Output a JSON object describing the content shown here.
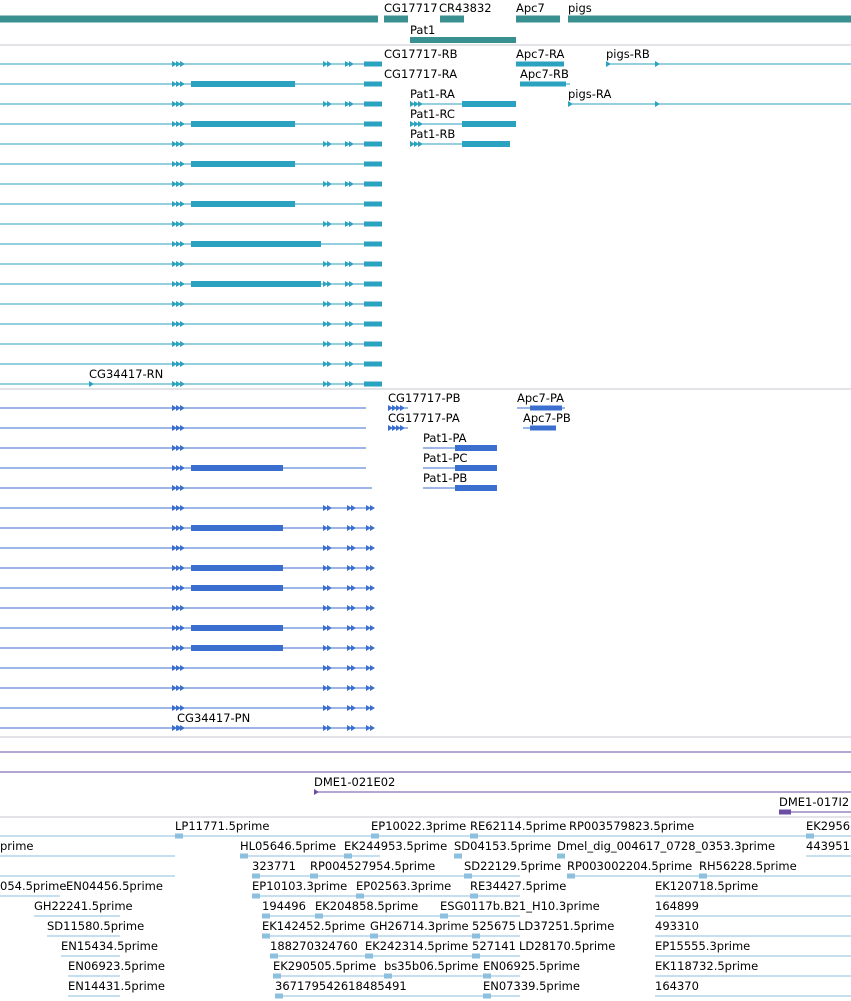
{
  "colors": {
    "gene": "#3a8f91",
    "transcript": "#2ba2c0",
    "protein": "#3a6fcf",
    "clone": "#6a4ea6",
    "est": "#8dbfdf",
    "separator": "#c8c8d0"
  },
  "sections": {
    "genes": [
      {
        "label": "CG17717"
      },
      {
        "label": "CR43832"
      },
      {
        "label": "Apc7"
      },
      {
        "label": "pigs"
      },
      {
        "label": "Pat1"
      }
    ],
    "transcripts": [
      {
        "label": "CG17717-RB"
      },
      {
        "label": "CG17717-RA"
      },
      {
        "label": "Apc7-RA"
      },
      {
        "label": "Apc7-RB"
      },
      {
        "label": "pigs-RB"
      },
      {
        "label": "pigs-RA"
      },
      {
        "label": "Pat1-RA"
      },
      {
        "label": "Pat1-RC"
      },
      {
        "label": "Pat1-RB"
      },
      {
        "label": "CG34417-RN"
      }
    ],
    "proteins": [
      {
        "label": "CG17717-PB"
      },
      {
        "label": "CG17717-PA"
      },
      {
        "label": "Apc7-PA"
      },
      {
        "label": "Apc7-PB"
      },
      {
        "label": "Pat1-PA"
      },
      {
        "label": "Pat1-PC"
      },
      {
        "label": "Pat1-PB"
      },
      {
        "label": "CG34417-PN"
      }
    ],
    "clones": [
      {
        "label": "DME1-021E02"
      },
      {
        "label": "DME1-017I2"
      }
    ],
    "ests": [
      {
        "label": "prime"
      },
      {
        "label": "LP11771.5prime"
      },
      {
        "label": "EP10022.3prime"
      },
      {
        "label": "RE62114.5prime"
      },
      {
        "label": "RP003579823.5prime"
      },
      {
        "label": "EK2956"
      },
      {
        "label": "HL05646.5prime"
      },
      {
        "label": "EK244953.5prime"
      },
      {
        "label": "SD04153.5prime"
      },
      {
        "label": "Dmel_dig_004617_0728_0353.3prime"
      },
      {
        "label": "443951"
      },
      {
        "label": "323771"
      },
      {
        "label": "RP004527954.5prime"
      },
      {
        "label": "SD22129.5prime"
      },
      {
        "label": "RP003002204.5prime"
      },
      {
        "label": "RH56228.5prime"
      },
      {
        "label": "054.5prime"
      },
      {
        "label": "EN04456.5prime"
      },
      {
        "label": "EP10103.3prime"
      },
      {
        "label": "EP02563.3prime"
      },
      {
        "label": "RE34427.5prime"
      },
      {
        "label": "EK120718.5prime"
      },
      {
        "label": "GH22241.5prime"
      },
      {
        "label": "194496"
      },
      {
        "label": "EK204858.5prime"
      },
      {
        "label": "ESG0117b.B21_H10.3prime"
      },
      {
        "label": "164899"
      },
      {
        "label": "SD11580.5prime"
      },
      {
        "label": "EK142452.5prime"
      },
      {
        "label": "GH26714.3prime"
      },
      {
        "label": "525675"
      },
      {
        "label": "LD37251.5prime"
      },
      {
        "label": "493310"
      },
      {
        "label": "EN15434.5prime"
      },
      {
        "label": "188270324760"
      },
      {
        "label": "EK242314.5prime"
      },
      {
        "label": "527141"
      },
      {
        "label": "LD28170.5prime"
      },
      {
        "label": "EP15555.3prime"
      },
      {
        "label": "EN06923.5prime"
      },
      {
        "label": "EK290505.5prime"
      },
      {
        "label": "bs35b06.5prime"
      },
      {
        "label": "EN06925.5prime"
      },
      {
        "label": "EK118732.5prime"
      },
      {
        "label": "EN14431.5prime"
      },
      {
        "label": "367179542618485491"
      },
      {
        "label": "EN07339.5prime"
      },
      {
        "label": "164370"
      }
    ]
  }
}
